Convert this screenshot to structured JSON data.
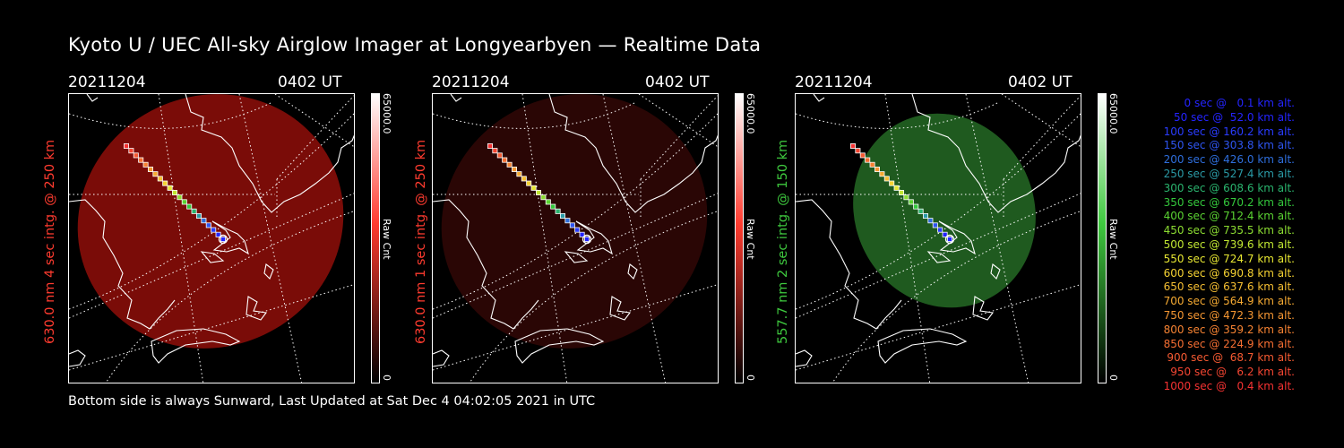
{
  "title": "Kyoto U / UEC All-sky Airglow Imager at Longyearbyen — Realtime Data",
  "footer": "Bottom side is always Sunward, Last Updated at Sat Dec  4 04:02:05 2021 in UTC",
  "panels": [
    {
      "date": "20211204",
      "time": "0402 UT",
      "ylabel": "630.0 nm 4 sec intg. @ 250 km",
      "color": "#ff3b2f",
      "cbar_max": "65000.0",
      "cbar_min": "0",
      "cbar_unit": "Raw Cnt",
      "image_intensity": 0.75
    },
    {
      "date": "20211204",
      "time": "0402 UT",
      "ylabel": "630.0 nm 1 sec intg. @ 250 km",
      "color": "#ff3b2f",
      "cbar_max": "65000.0",
      "cbar_min": "0",
      "cbar_unit": "Raw Cnt",
      "image_intensity": 0.18
    },
    {
      "date": "20211204",
      "time": "0402 UT",
      "ylabel": "557.7 nm 2 sec intg. @ 150 km",
      "color": "#3ec83e",
      "cbar_max": "65000.0",
      "cbar_min": "0",
      "cbar_unit": "Raw Cnt",
      "image_intensity": 0.55
    }
  ],
  "legend": [
    {
      "text": "0 sec @   0.1 km alt.",
      "color": "#2424ff"
    },
    {
      "text": "50 sec @  52.0 km alt.",
      "color": "#2424ff"
    },
    {
      "text": "100 sec @ 160.2 km alt.",
      "color": "#2a3cff"
    },
    {
      "text": "150 sec @ 303.8 km alt.",
      "color": "#2e55f0"
    },
    {
      "text": "200 sec @ 426.0 km alt.",
      "color": "#2e6edc"
    },
    {
      "text": "250 sec @ 527.4 km alt.",
      "color": "#2a9aa6"
    },
    {
      "text": "300 sec @ 608.6 km alt.",
      "color": "#2ab46e"
    },
    {
      "text": "350 sec @ 670.2 km alt.",
      "color": "#34c83c"
    },
    {
      "text": "400 sec @ 712.4 km alt.",
      "color": "#5ad232"
    },
    {
      "text": "450 sec @ 735.5 km alt.",
      "color": "#8cdc32"
    },
    {
      "text": "500 sec @ 739.6 km alt.",
      "color": "#c0e632"
    },
    {
      "text": "550 sec @ 724.7 km alt.",
      "color": "#e6e632"
    },
    {
      "text": "600 sec @ 690.8 km alt.",
      "color": "#f5d232"
    },
    {
      "text": "650 sec @ 637.6 km alt.",
      "color": "#f5be32"
    },
    {
      "text": "700 sec @ 564.9 km alt.",
      "color": "#f5aa32"
    },
    {
      "text": "750 sec @ 472.3 km alt.",
      "color": "#f59632"
    },
    {
      "text": "800 sec @ 359.2 km alt.",
      "color": "#f58232"
    },
    {
      "text": "850 sec @ 224.9 km alt.",
      "color": "#f56e32"
    },
    {
      "text": "900 sec @  68.7 km alt.",
      "color": "#f55a32"
    },
    {
      "text": "950 sec @   6.2 km alt.",
      "color": "#f54632"
    },
    {
      "text": "1000 sec @   0.4 km alt.",
      "color": "#f53232"
    }
  ]
}
